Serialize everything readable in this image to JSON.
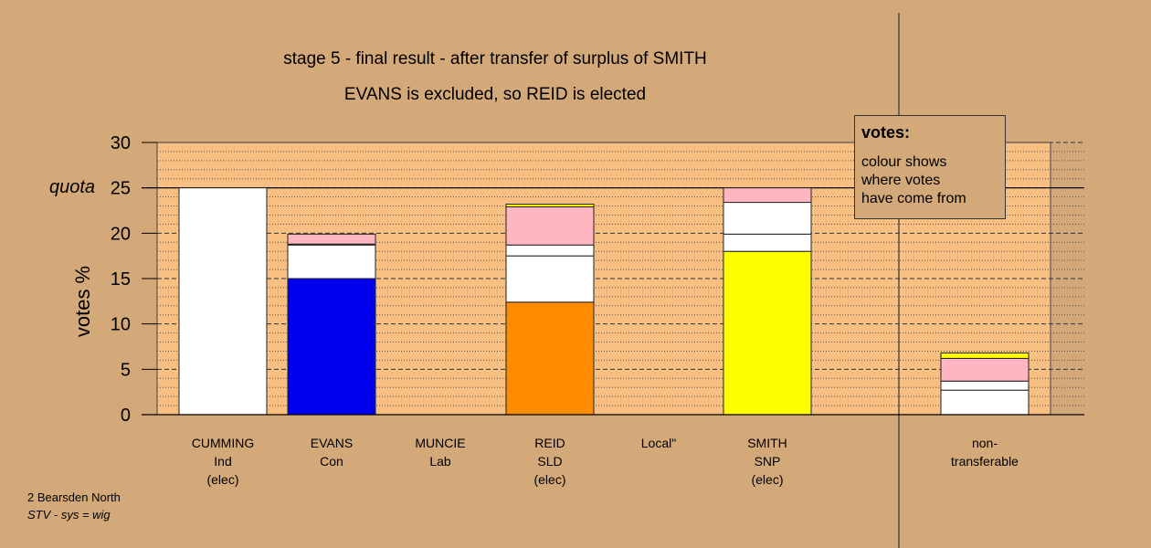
{
  "title_lines": [
    "stage 5 - final result - after transfer of surplus of SMITH",
    "EVANS is excluded, so REID is elected"
  ],
  "legend": {
    "title": "votes:",
    "lines": [
      "colour shows",
      "where votes",
      "have come from"
    ]
  },
  "footer": {
    "line1": "2 Bearsden North",
    "line2": "STV - sys = wig"
  },
  "chart_data": {
    "type": "bar",
    "stacked": true,
    "ylabel": "votes %",
    "ylim": [
      0,
      30
    ],
    "yticks": [
      0,
      5,
      10,
      15,
      20,
      25,
      30
    ],
    "quota": 25,
    "quota_label": "quota",
    "grid": true,
    "categories": [
      {
        "lines": [
          "CUMMING",
          "Ind",
          "(elec)"
        ]
      },
      {
        "lines": [
          "EVANS",
          "Con"
        ]
      },
      {
        "lines": [
          "MUNCIE",
          "Lab"
        ]
      },
      {
        "lines": [
          "REID",
          "SLD",
          "(elec)"
        ]
      },
      {
        "lines": [
          "Local\""
        ]
      },
      {
        "lines": [
          "SMITH",
          "SNP",
          "(elec)"
        ]
      },
      {
        "lines": [
          "non-",
          "transferable"
        ]
      }
    ],
    "segments": [
      [
        {
          "value": 25.0,
          "color": "#ffffff"
        }
      ],
      [
        {
          "value": 15.0,
          "color": "#0000ee"
        },
        {
          "value": 3.7,
          "color": "#ffffff"
        },
        {
          "value": 0.1,
          "color": "#ffff00"
        },
        {
          "value": 1.1,
          "color": "#ffb6c1"
        }
      ],
      [],
      [
        {
          "value": 12.4,
          "color": "#ff8c00"
        },
        {
          "value": 5.1,
          "color": "#ffffff"
        },
        {
          "value": 1.2,
          "color": "#ffffff"
        },
        {
          "value": 4.2,
          "color": "#ffb6c1"
        },
        {
          "value": 0.3,
          "color": "#ffff00"
        }
      ],
      [],
      [
        {
          "value": 18.0,
          "color": "#ffff00"
        },
        {
          "value": 1.9,
          "color": "#ffffff"
        },
        {
          "value": 3.5,
          "color": "#ffffff"
        },
        {
          "value": 1.6,
          "color": "#ffb6c1"
        }
      ],
      [
        {
          "value": 2.7,
          "color": "#ffffff"
        },
        {
          "value": 1.0,
          "color": "#ffffff"
        },
        {
          "value": 2.5,
          "color": "#ffb6c1"
        },
        {
          "value": 0.6,
          "color": "#ffff00"
        }
      ]
    ],
    "colors": {
      "plot_background": "#f7bf81",
      "page_background": "#d3a97a"
    }
  }
}
